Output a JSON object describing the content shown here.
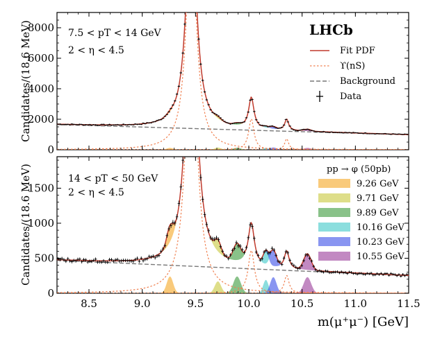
{
  "chart_data": {
    "type": "line",
    "x_domain": [
      8.2,
      11.5
    ],
    "x_ticks": [
      "8.5",
      "9.0",
      "9.5",
      "10.0",
      "10.5",
      "11.0",
      "11.5"
    ],
    "x_tick_values": [
      8.5,
      9.0,
      9.5,
      10.0,
      10.5,
      11.0,
      11.5
    ],
    "xlabel": "m(μ⁺μ⁻) [GeV]",
    "ylabel": "Candidates/(18.6 MeV)",
    "logo": "LHCb",
    "upsilon_masses": [
      9.4603,
      10.0233,
      10.3552
    ],
    "peak_masses": [
      9.26,
      9.71,
      9.89,
      10.16,
      10.23,
      10.55
    ],
    "peak_colors": [
      "#f5a623",
      "#c8c83a",
      "#3a9a3a",
      "#3ec8c8",
      "#3a4ee8",
      "#9a3a9a"
    ],
    "panels": [
      {
        "id": "top",
        "ylim": [
          0,
          9000
        ],
        "y_ticks": [
          "0",
          "2000",
          "4000",
          "6000",
          "8000"
        ],
        "y_tick_values": [
          0,
          2000,
          4000,
          6000,
          8000
        ],
        "annotation_lines": [
          "7.5 < pT < 14 GeV",
          "2 < η < 4.5"
        ],
        "background_line": [
          [
            8.2,
            1650
          ],
          [
            11.5,
            980
          ]
        ],
        "peak_heights": [
          120,
          140,
          130,
          110,
          150,
          120
        ],
        "legend": {
          "fit": "Fit PDF",
          "upsilon": "ϒ(nS)",
          "background": "Background",
          "data": "Data"
        }
      },
      {
        "id": "bottom",
        "ylim": [
          0,
          1950
        ],
        "y_ticks": [
          "0",
          "500",
          "1000",
          "1500"
        ],
        "y_tick_values": [
          0,
          500,
          1000,
          1500
        ],
        "annotation_lines": [
          "14 < pT < 50 GeV",
          "2 < η < 4.5"
        ],
        "background_line": [
          [
            8.2,
            470
          ],
          [
            11.5,
            250
          ]
        ],
        "peak_heights": [
          240,
          170,
          240,
          190,
          230,
          230
        ],
        "legend_title": "pp → φ (50pb)",
        "legend_entries": [
          "9.26 GeV",
          "9.71 GeV",
          "9.89 GeV",
          "10.16 GeV",
          "10.23 GeV",
          "10.55 GeV"
        ]
      }
    ]
  }
}
